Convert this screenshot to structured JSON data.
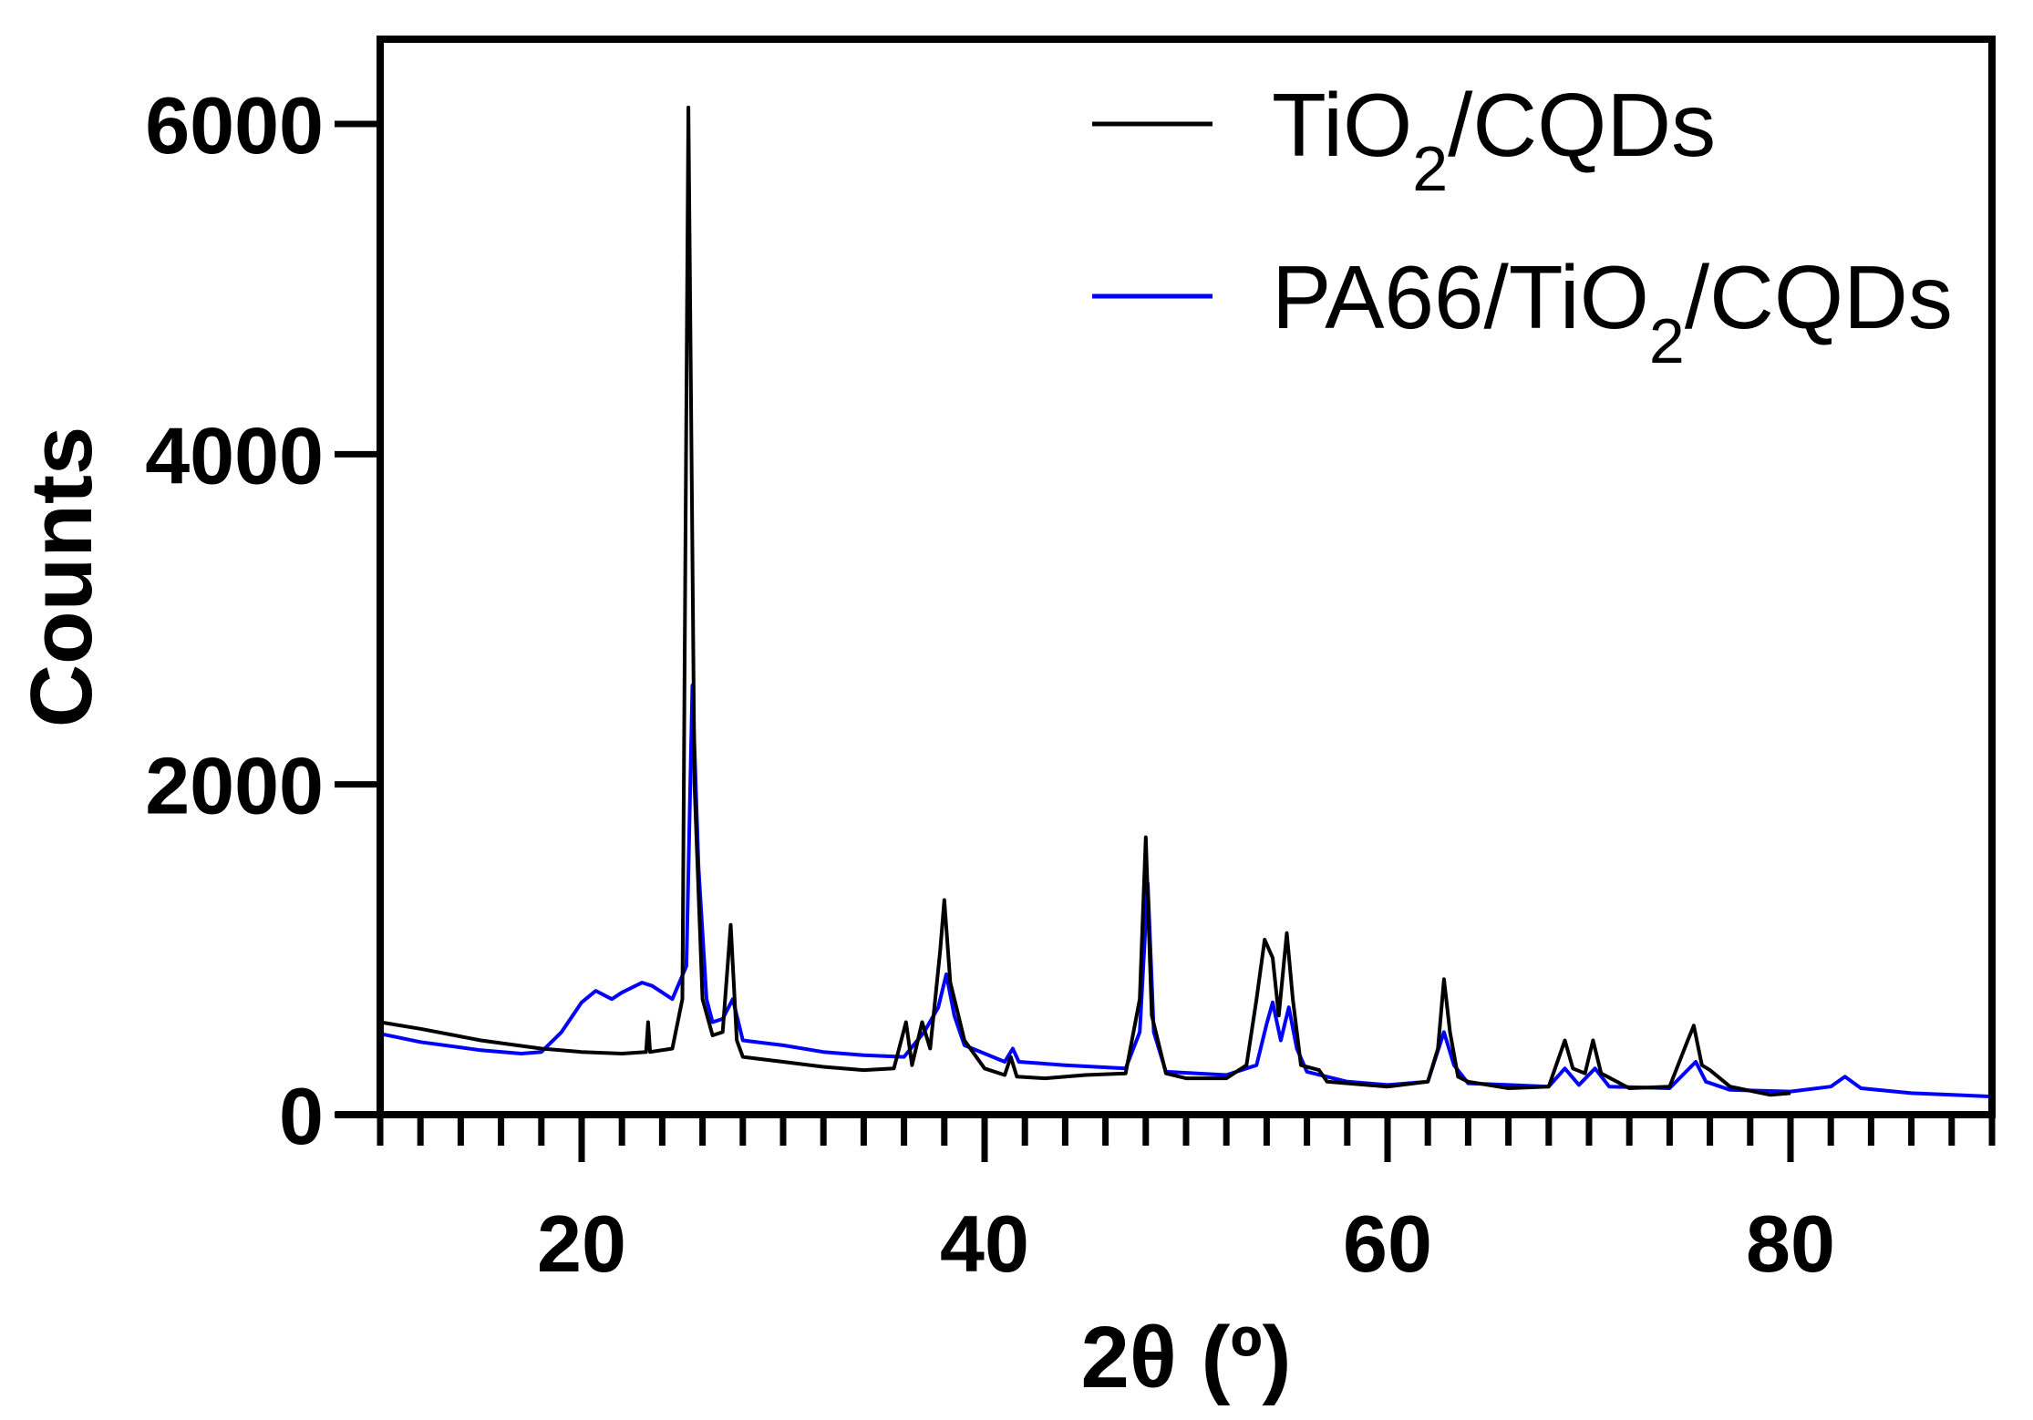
{
  "chart_data": {
    "type": "line",
    "title": "",
    "xlabel": "2θ (º)",
    "ylabel": "Counts",
    "xlim": [
      10,
      90
    ],
    "ylim": [
      0,
      6500
    ],
    "xticks": [
      20,
      40,
      60,
      80
    ],
    "xtick_labels": [
      "20",
      "40",
      "60",
      "80"
    ],
    "x_minor_step": 2,
    "yticks": [
      0,
      2000,
      4000,
      6000
    ],
    "ytick_labels": [
      "0",
      "2000",
      "4000",
      "6000"
    ],
    "grid": false,
    "legend_position": "top-right",
    "series": [
      {
        "name": "TiO2/CQDs",
        "label_main": "TiO",
        "label_sub": "2",
        "label_rest": "/CQDs",
        "color": "#000000",
        "points": [
          [
            10,
            560
          ],
          [
            12,
            520
          ],
          [
            15,
            450
          ],
          [
            18,
            400
          ],
          [
            20,
            380
          ],
          [
            22,
            370
          ],
          [
            23.2,
            380
          ],
          [
            23.3,
            560
          ],
          [
            23.4,
            380
          ],
          [
            24.5,
            400
          ],
          [
            25,
            700
          ],
          [
            25.3,
            6100
          ],
          [
            25.6,
            2000
          ],
          [
            26,
            700
          ],
          [
            26.5,
            480
          ],
          [
            27,
            500
          ],
          [
            27.4,
            1150
          ],
          [
            27.7,
            450
          ],
          [
            28,
            350
          ],
          [
            30,
            320
          ],
          [
            32,
            290
          ],
          [
            34,
            270
          ],
          [
            35.5,
            280
          ],
          [
            36.1,
            560
          ],
          [
            36.4,
            300
          ],
          [
            36.9,
            560
          ],
          [
            37.3,
            400
          ],
          [
            37.8,
            1000
          ],
          [
            38.0,
            1300
          ],
          [
            38.3,
            800
          ],
          [
            38.6,
            650
          ],
          [
            39,
            450
          ],
          [
            40,
            280
          ],
          [
            41,
            240
          ],
          [
            41.3,
            350
          ],
          [
            41.6,
            230
          ],
          [
            43,
            220
          ],
          [
            45,
            240
          ],
          [
            47,
            250
          ],
          [
            47.7,
            700
          ],
          [
            48.0,
            1680
          ],
          [
            48.3,
            600
          ],
          [
            49,
            250
          ],
          [
            50,
            220
          ],
          [
            52,
            220
          ],
          [
            53,
            300
          ],
          [
            53.5,
            700
          ],
          [
            53.9,
            1060
          ],
          [
            54.3,
            950
          ],
          [
            54.6,
            600
          ],
          [
            55.0,
            1100
          ],
          [
            55.3,
            700
          ],
          [
            55.7,
            300
          ],
          [
            56.6,
            270
          ],
          [
            57,
            200
          ],
          [
            60,
            170
          ],
          [
            62,
            200
          ],
          [
            62.5,
            400
          ],
          [
            62.8,
            820
          ],
          [
            63.1,
            500
          ],
          [
            63.5,
            230
          ],
          [
            64,
            200
          ],
          [
            66,
            160
          ],
          [
            68,
            170
          ],
          [
            68.8,
            450
          ],
          [
            69.2,
            280
          ],
          [
            69.8,
            250
          ],
          [
            70.2,
            450
          ],
          [
            70.6,
            250
          ],
          [
            72,
            160
          ],
          [
            74,
            170
          ],
          [
            74.9,
            450
          ],
          [
            75.2,
            540
          ],
          [
            75.6,
            300
          ],
          [
            76,
            270
          ],
          [
            77,
            170
          ],
          [
            79,
            120
          ],
          [
            80,
            130
          ]
        ]
      },
      {
        "name": "PA66/TiO2/CQDs",
        "label_main": "PA66/TiO",
        "label_sub": "2",
        "label_rest": "/CQDs",
        "color": "#0000ff",
        "points": [
          [
            10,
            490
          ],
          [
            12,
            440
          ],
          [
            15,
            390
          ],
          [
            17,
            370
          ],
          [
            18,
            380
          ],
          [
            19,
            500
          ],
          [
            20,
            680
          ],
          [
            20.7,
            750
          ],
          [
            21.5,
            700
          ],
          [
            22,
            740
          ],
          [
            23,
            800
          ],
          [
            23.5,
            780
          ],
          [
            24.5,
            700
          ],
          [
            25.2,
            900
          ],
          [
            25.5,
            2600
          ],
          [
            25.8,
            1500
          ],
          [
            26.2,
            700
          ],
          [
            26.5,
            560
          ],
          [
            27,
            580
          ],
          [
            27.5,
            700
          ],
          [
            28,
            450
          ],
          [
            30,
            420
          ],
          [
            32,
            380
          ],
          [
            34,
            360
          ],
          [
            36,
            350
          ],
          [
            37,
            500
          ],
          [
            37.7,
            650
          ],
          [
            38.1,
            850
          ],
          [
            38.5,
            600
          ],
          [
            39,
            420
          ],
          [
            41,
            320
          ],
          [
            41.4,
            400
          ],
          [
            41.7,
            320
          ],
          [
            44,
            300
          ],
          [
            47,
            280
          ],
          [
            47.7,
            500
          ],
          [
            48.1,
            1400
          ],
          [
            48.4,
            500
          ],
          [
            49,
            260
          ],
          [
            52,
            240
          ],
          [
            53.5,
            300
          ],
          [
            54.0,
            550
          ],
          [
            54.3,
            680
          ],
          [
            54.7,
            450
          ],
          [
            55.1,
            650
          ],
          [
            55.5,
            400
          ],
          [
            56,
            260
          ],
          [
            58,
            200
          ],
          [
            60,
            180
          ],
          [
            62,
            200
          ],
          [
            62.8,
            500
          ],
          [
            63.3,
            300
          ],
          [
            64,
            190
          ],
          [
            66,
            180
          ],
          [
            68,
            170
          ],
          [
            68.8,
            280
          ],
          [
            69.5,
            180
          ],
          [
            70.3,
            280
          ],
          [
            71,
            170
          ],
          [
            74,
            160
          ],
          [
            75.3,
            320
          ],
          [
            75.8,
            200
          ],
          [
            77,
            150
          ],
          [
            80,
            140
          ],
          [
            82,
            170
          ],
          [
            82.7,
            230
          ],
          [
            83.5,
            160
          ],
          [
            86,
            130
          ],
          [
            90,
            110
          ]
        ]
      }
    ]
  }
}
